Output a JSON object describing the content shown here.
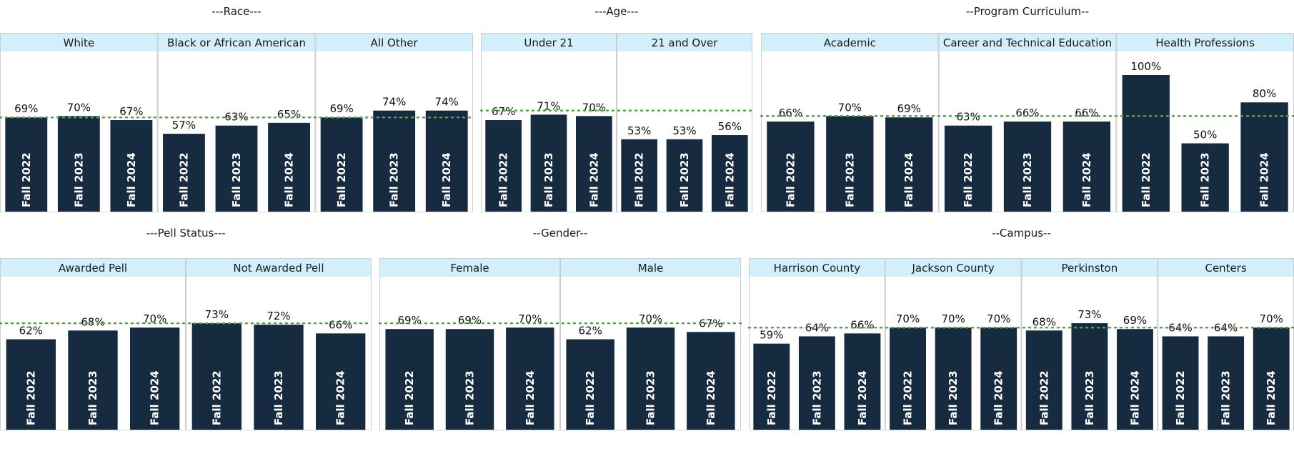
{
  "colors": {
    "bar": "#162a40",
    "header_fill": "#d2effb",
    "reference_line": "#5a9e4b",
    "panel_border": "#cccccc",
    "baseline": "#d9d9d9"
  },
  "chart_data": [
    {
      "type": "bar",
      "title": "---Race---",
      "ylim": [
        0,
        100
      ],
      "reference_line": 69,
      "categories": [
        "Fall 2022",
        "Fall 2023",
        "Fall 2024"
      ],
      "panels": [
        {
          "name": "White",
          "values": [
            69,
            70,
            67
          ],
          "labels": [
            "69%",
            "70%",
            "67%"
          ]
        },
        {
          "name": "Black or African American",
          "values": [
            57,
            63,
            65
          ],
          "labels": [
            "57%",
            "63%",
            "65%"
          ]
        },
        {
          "name": "All Other",
          "values": [
            69,
            74,
            74
          ],
          "labels": [
            "69%",
            "74%",
            "74%"
          ]
        }
      ]
    },
    {
      "type": "bar",
      "title": "---Age---",
      "ylim": [
        0,
        100
      ],
      "reference_line": 74,
      "categories": [
        "Fall 2022",
        "Fall 2023",
        "Fall 2024"
      ],
      "panels": [
        {
          "name": "Under 21",
          "values": [
            67,
            71,
            70
          ],
          "labels": [
            "67%",
            "71%",
            "70%"
          ]
        },
        {
          "name": "21 and Over",
          "values": [
            53,
            53,
            56
          ],
          "labels": [
            "53%",
            "53%",
            "56%"
          ]
        }
      ]
    },
    {
      "type": "bar",
      "title": "--Program Curriculum--",
      "ylim": [
        0,
        100
      ],
      "reference_line": 70,
      "categories": [
        "Fall 2022",
        "Fall 2023",
        "Fall 2024"
      ],
      "panels": [
        {
          "name": "Academic",
          "values": [
            66,
            70,
            69
          ],
          "labels": [
            "66%",
            "70%",
            "69%"
          ]
        },
        {
          "name": "Career and Technical Education",
          "values": [
            63,
            66,
            66
          ],
          "labels": [
            "63%",
            "66%",
            "66%"
          ]
        },
        {
          "name": "Health Professions",
          "values": [
            100,
            50,
            80
          ],
          "labels": [
            "100%",
            "50%",
            "80%"
          ]
        }
      ]
    },
    {
      "type": "bar",
      "title": "---Pell Status---",
      "ylim": [
        0,
        100
      ],
      "reference_line": 73,
      "categories": [
        "Fall 2022",
        "Fall 2023",
        "Fall 2024"
      ],
      "panels": [
        {
          "name": "Awarded Pell",
          "values": [
            62,
            68,
            70
          ],
          "labels": [
            "62%",
            "68%",
            "70%"
          ]
        },
        {
          "name": "Not Awarded Pell",
          "values": [
            73,
            72,
            66
          ],
          "labels": [
            "73%",
            "72%",
            "66%"
          ]
        }
      ]
    },
    {
      "type": "bar",
      "title": "--Gender--",
      "ylim": [
        0,
        100
      ],
      "reference_line": 73,
      "categories": [
        "Fall 2022",
        "Fall 2023",
        "Fall 2024"
      ],
      "panels": [
        {
          "name": "Female",
          "values": [
            69,
            69,
            70
          ],
          "labels": [
            "69%",
            "69%",
            "70%"
          ]
        },
        {
          "name": "Male",
          "values": [
            62,
            70,
            67
          ],
          "labels": [
            "62%",
            "70%",
            "67%"
          ]
        }
      ]
    },
    {
      "type": "bar",
      "title": "--Campus--",
      "ylim": [
        0,
        100
      ],
      "reference_line": 70,
      "categories": [
        "Fall 2022",
        "Fall 2023",
        "Fall 2024"
      ],
      "panels": [
        {
          "name": "Harrison County",
          "values": [
            59,
            64,
            66
          ],
          "labels": [
            "59%",
            "64%",
            "66%"
          ]
        },
        {
          "name": "Jackson County",
          "values": [
            70,
            70,
            70
          ],
          "labels": [
            "70%",
            "70%",
            "70%"
          ]
        },
        {
          "name": "Perkinston",
          "values": [
            68,
            73,
            69
          ],
          "labels": [
            "68%",
            "73%",
            "69%"
          ]
        },
        {
          "name": "Centers",
          "values": [
            64,
            64,
            70
          ],
          "labels": [
            "64%",
            "64%",
            "70%"
          ]
        }
      ]
    }
  ]
}
